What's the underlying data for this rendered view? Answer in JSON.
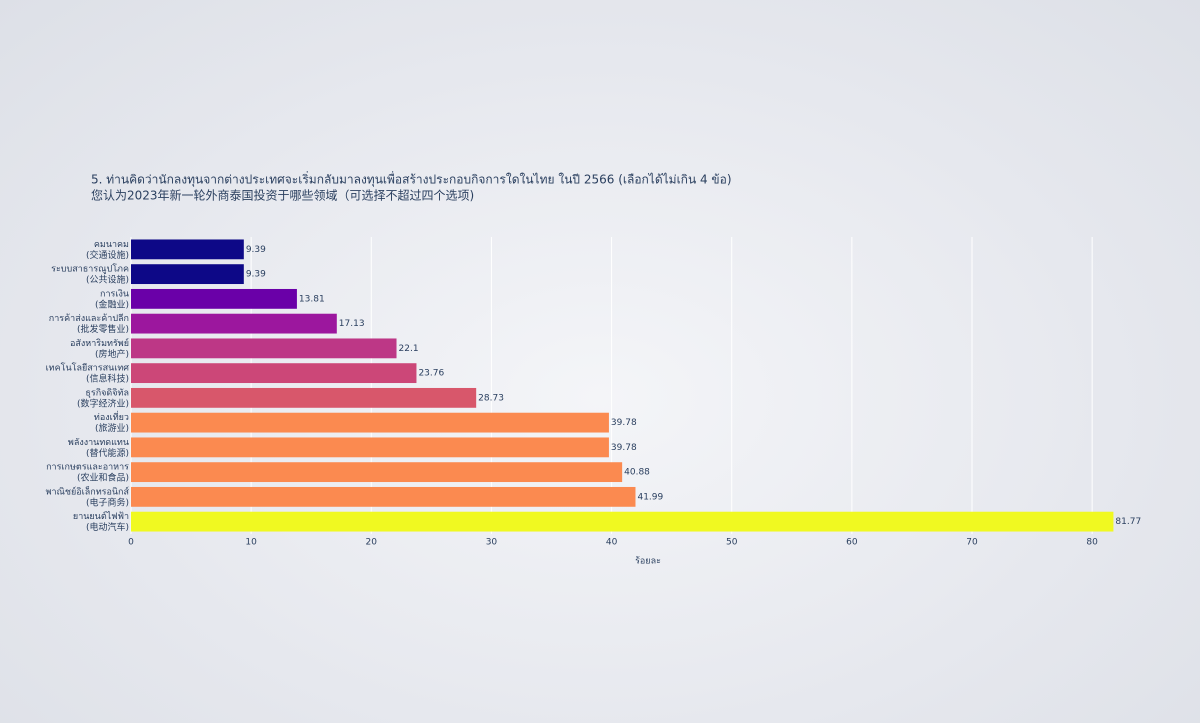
{
  "chart_data": {
    "type": "bar",
    "orientation": "horizontal",
    "title": "5. ท่านคิดว่านักลงทุนจากต่างประเทศจะเริ่มกลับมาลงทุนเพื่อสร้างประกอบกิจการใดในไทย ในปี 2566 (เลือกได้ไม่เกิน 4 ข้อ)",
    "subtitle": "您认为2023年新一轮外商泰国投资于哪些领域（可选择不超过四个选项)",
    "x_label": "ร้อยละ",
    "categories": [
      [
        "คมนาคม",
        "(交通设施)"
      ],
      [
        "ระบบสาธารณูปโภค",
        "(公共设施)"
      ],
      [
        "การเงิน",
        "(金融业)"
      ],
      [
        "การค้าส่งและค้าปลีก",
        "(批发零售业)"
      ],
      [
        "อสังหาริมทรัพย์",
        "(房地产)"
      ],
      [
        "เทคโนโลยีสารสนเทศ",
        "(信息科技)"
      ],
      [
        "ธุรกิจดิจิทัล",
        "(数字经济业)"
      ],
      [
        "ท่องเที่ยว",
        "(旅游业)"
      ],
      [
        "พลังงานทดแทน",
        "(替代能源)"
      ],
      [
        "การเกษตรและอาหาร",
        "(农业和食品)"
      ],
      [
        "พาณิชย์อิเล็กทรอนิกส์",
        "(电子商务)"
      ],
      [
        "ยานยนต์ไฟฟ้า",
        "(电动汽车)"
      ]
    ],
    "values": [
      9.39,
      9.39,
      13.81,
      17.13,
      22.1,
      23.76,
      28.73,
      39.78,
      39.78,
      40.88,
      41.99,
      81.77
    ],
    "colors": [
      "#0d0887",
      "#0d0887",
      "#6a00a8",
      "#9c179e",
      "#bd3786",
      "#cc4778",
      "#d8576b",
      "#fb8a50",
      "#fb8a50",
      "#fb8a50",
      "#fb8a50",
      "#f0f921"
    ],
    "xlim": [
      0,
      83.4
    ],
    "xticks": [
      0,
      10,
      20,
      30,
      40,
      50,
      60,
      70,
      80
    ],
    "grid": true
  }
}
